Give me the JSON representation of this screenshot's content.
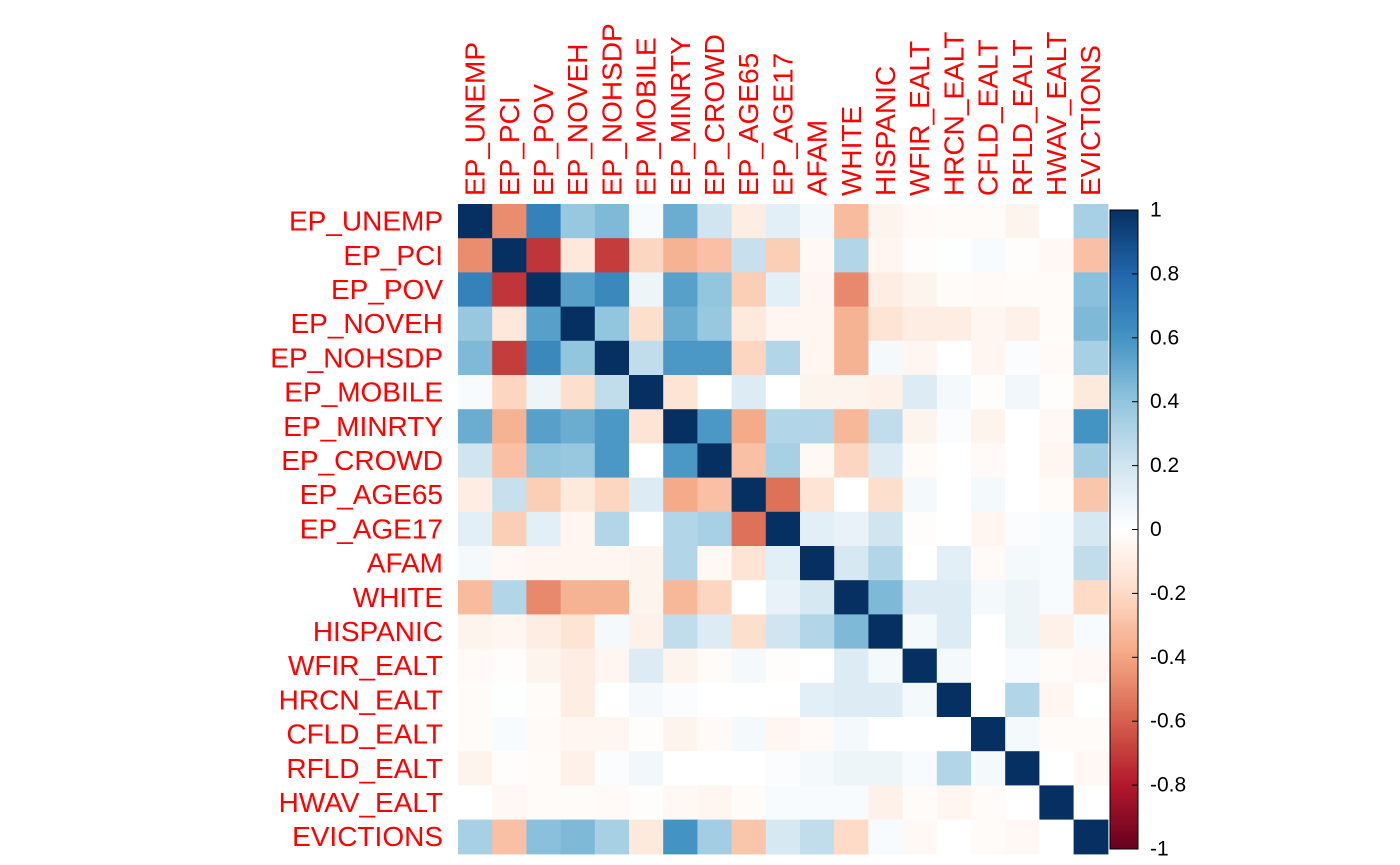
{
  "chart_data": {
    "type": "heatmap",
    "variables": [
      "EP_UNEMP",
      "EP_PCI",
      "EP_POV",
      "EP_NOVEH",
      "EP_NOHSDP",
      "EP_MOBILE",
      "EP_MINRTY",
      "EP_CROWD",
      "EP_AGE65",
      "EP_AGE17",
      "AFAM",
      "WHITE",
      "HISPANIC",
      "WFIR_EALT",
      "HRCN_EALT",
      "CFLD_EALT",
      "RFLD_EALT",
      "HWAV_EALT",
      "EVICTIONS"
    ],
    "matrix": [
      [
        1.0,
        -0.47,
        0.68,
        0.38,
        0.45,
        0.03,
        0.5,
        0.2,
        -0.1,
        0.12,
        0.05,
        -0.32,
        -0.06,
        -0.03,
        -0.02,
        -0.02,
        -0.06,
        0.0,
        0.33
      ],
      [
        -0.47,
        1.0,
        -0.72,
        -0.13,
        -0.7,
        -0.22,
        -0.35,
        -0.3,
        0.23,
        -0.25,
        -0.04,
        0.3,
        -0.05,
        -0.01,
        0.01,
        0.03,
        -0.01,
        -0.04,
        -0.3
      ],
      [
        0.68,
        -0.72,
        1.0,
        0.55,
        0.65,
        0.08,
        0.55,
        0.4,
        -0.25,
        0.12,
        -0.05,
        -0.48,
        -0.1,
        -0.06,
        -0.02,
        -0.03,
        -0.02,
        -0.02,
        0.42
      ],
      [
        0.38,
        -0.13,
        0.55,
        1.0,
        0.4,
        -0.18,
        0.5,
        0.38,
        -0.12,
        -0.05,
        -0.05,
        -0.35,
        -0.15,
        -0.1,
        -0.1,
        -0.05,
        -0.08,
        -0.02,
        0.45
      ],
      [
        0.45,
        -0.7,
        0.65,
        0.4,
        1.0,
        0.25,
        0.58,
        0.58,
        -0.22,
        0.3,
        -0.05,
        -0.35,
        0.05,
        -0.05,
        0.0,
        -0.05,
        0.02,
        -0.03,
        0.33
      ],
      [
        0.03,
        -0.22,
        0.08,
        -0.18,
        0.25,
        1.0,
        -0.15,
        0.0,
        0.15,
        0.0,
        -0.06,
        -0.06,
        -0.08,
        0.15,
        0.05,
        -0.01,
        0.06,
        -0.01,
        -0.12
      ],
      [
        0.5,
        -0.35,
        0.55,
        0.5,
        0.58,
        -0.15,
        1.0,
        0.58,
        -0.38,
        0.3,
        0.3,
        -0.33,
        0.25,
        -0.06,
        0.02,
        -0.06,
        0.0,
        -0.04,
        0.6
      ],
      [
        0.2,
        -0.3,
        0.4,
        0.38,
        0.58,
        0.0,
        0.58,
        1.0,
        -0.3,
        0.33,
        -0.04,
        -0.22,
        0.15,
        -0.02,
        0.0,
        -0.03,
        0.0,
        -0.05,
        0.35
      ],
      [
        -0.1,
        0.23,
        -0.25,
        -0.12,
        -0.22,
        0.15,
        -0.38,
        -0.3,
        1.0,
        -0.55,
        -0.15,
        0.0,
        -0.18,
        0.05,
        0.0,
        0.05,
        0.0,
        -0.02,
        -0.28
      ],
      [
        0.12,
        -0.25,
        0.12,
        -0.05,
        0.3,
        0.0,
        0.3,
        0.33,
        -0.55,
        1.0,
        0.12,
        0.1,
        0.2,
        -0.01,
        0.0,
        -0.05,
        0.02,
        0.03,
        0.18
      ],
      [
        0.05,
        -0.04,
        -0.05,
        -0.05,
        -0.05,
        -0.06,
        0.3,
        -0.04,
        -0.15,
        0.12,
        1.0,
        0.18,
        0.3,
        0.0,
        0.12,
        -0.03,
        0.05,
        0.03,
        0.25
      ],
      [
        -0.32,
        0.3,
        -0.48,
        -0.35,
        -0.35,
        -0.06,
        -0.33,
        -0.22,
        0.0,
        0.1,
        0.18,
        1.0,
        0.45,
        0.15,
        0.15,
        0.05,
        0.08,
        0.03,
        -0.2
      ],
      [
        -0.06,
        -0.05,
        -0.1,
        -0.15,
        0.05,
        -0.08,
        0.25,
        0.15,
        -0.18,
        0.2,
        0.3,
        0.45,
        1.0,
        0.05,
        0.15,
        0.0,
        0.08,
        -0.08,
        0.03
      ],
      [
        -0.03,
        -0.01,
        -0.06,
        -0.1,
        -0.05,
        0.15,
        -0.06,
        -0.02,
        0.05,
        -0.01,
        0.0,
        0.15,
        0.05,
        1.0,
        0.05,
        0.0,
        0.03,
        -0.02,
        -0.04
      ],
      [
        -0.02,
        0.01,
        -0.02,
        -0.1,
        0.0,
        0.05,
        0.02,
        0.0,
        0.0,
        0.0,
        0.12,
        0.15,
        0.15,
        0.05,
        1.0,
        0.0,
        0.3,
        -0.05,
        0.0
      ],
      [
        -0.02,
        0.03,
        -0.03,
        -0.05,
        -0.05,
        -0.01,
        -0.06,
        -0.03,
        0.05,
        -0.05,
        -0.03,
        0.05,
        0.0,
        0.0,
        0.0,
        1.0,
        0.05,
        -0.02,
        -0.02
      ],
      [
        -0.06,
        -0.01,
        -0.02,
        -0.08,
        0.02,
        0.06,
        0.0,
        0.0,
        0.0,
        0.02,
        0.05,
        0.08,
        0.08,
        0.03,
        0.3,
        0.05,
        1.0,
        0.0,
        -0.04
      ],
      [
        0.0,
        -0.04,
        -0.02,
        -0.02,
        -0.03,
        -0.01,
        -0.04,
        -0.05,
        -0.02,
        0.03,
        0.03,
        0.03,
        -0.08,
        -0.02,
        -0.05,
        -0.02,
        0.0,
        1.0,
        0.0
      ],
      [
        0.33,
        -0.3,
        0.42,
        0.45,
        0.33,
        -0.12,
        0.6,
        0.35,
        -0.28,
        0.18,
        0.25,
        -0.2,
        0.03,
        -0.04,
        0.0,
        -0.02,
        -0.04,
        0.0,
        1.0
      ]
    ],
    "colorbar": {
      "range": [
        -1,
        1
      ],
      "ticks": [
        "1",
        "0.8",
        "0.6",
        "0.4",
        "0.2",
        "0",
        "-0.2",
        "-0.4",
        "-0.6",
        "-0.8",
        "-1"
      ],
      "palette": [
        "#67001F",
        "#B2182B",
        "#D6604D",
        "#F4A582",
        "#FDDBC7",
        "#FFFFFF",
        "#D1E5F0",
        "#92C5DE",
        "#4393C3",
        "#2166AC",
        "#053061"
      ]
    },
    "label_color": "#FF0000",
    "title": "",
    "xlabel": "",
    "ylabel": ""
  }
}
